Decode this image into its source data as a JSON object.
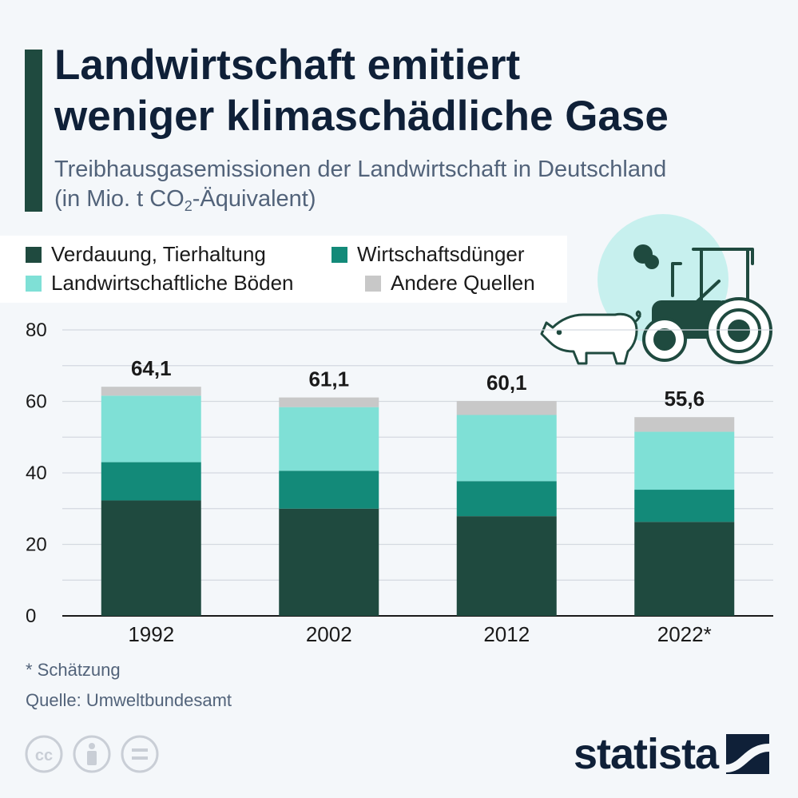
{
  "title_lines": [
    "Landwirtschaft emitiert",
    "weniger klimaschädliche Gase"
  ],
  "subtitle": {
    "line1": "Treibhausgasemissionen der Landwirtschaft in Deutschland",
    "line2_pre": "(in Mio. t CO",
    "line2_sub": "2",
    "line2_post": "-Äquivalent)"
  },
  "chart_data": {
    "type": "bar",
    "stacked": true,
    "categories": [
      "1992",
      "2002",
      "2012",
      "2022*"
    ],
    "series": [
      {
        "name": "Verdauung, Tierhaltung",
        "color": "#1f4a3f",
        "values": [
          32.3,
          30.0,
          27.9,
          26.3
        ]
      },
      {
        "name": "Wirtschaftsdünger",
        "color": "#138a79",
        "values": [
          10.7,
          10.6,
          9.8,
          9.0
        ]
      },
      {
        "name": "Landwirtschaftliche Böden",
        "color": "#7fe0d6",
        "values": [
          18.6,
          17.8,
          18.5,
          16.2
        ]
      },
      {
        "name": "Andere Quellen",
        "color": "#c8c8c8",
        "values": [
          2.5,
          2.7,
          3.9,
          4.1
        ]
      }
    ],
    "totals": [
      "64,1",
      "61,1",
      "60,1",
      "55,6"
    ],
    "ylim": [
      0,
      80
    ],
    "yticks": [
      0,
      20,
      40,
      60,
      80
    ],
    "grid": true,
    "legend": "top-left"
  },
  "footnote": "* Schätzung",
  "source": "Quelle: Umweltbundesamt",
  "brand": "statista",
  "icons": [
    "pig-icon",
    "tractor-icon",
    "cc-icon",
    "by-icon",
    "nd-icon",
    "statista-logo-icon"
  ]
}
